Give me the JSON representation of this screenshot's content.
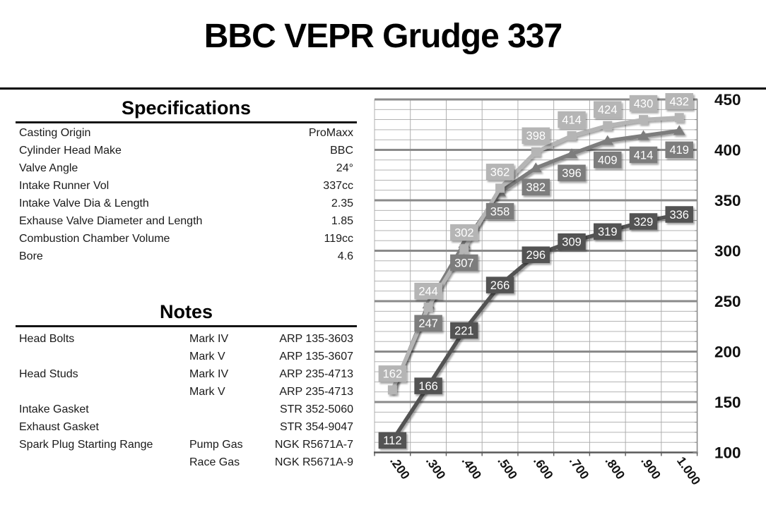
{
  "page": {
    "title": "BBC VEPR Grudge 337"
  },
  "specs": {
    "header": "Specifications",
    "rows": [
      {
        "label": "Casting Origin",
        "value": "ProMaxx"
      },
      {
        "label": "Cylinder Head Make",
        "value": "BBC"
      },
      {
        "label": "Valve Angle",
        "value": "24°"
      },
      {
        "label": "Intake Runner Vol",
        "value": "337cc"
      },
      {
        "label": "Intake Valve Dia & Length",
        "value": "2.35"
      },
      {
        "label": "Exhause Valve Diameter and Length",
        "value": "1.85"
      },
      {
        "label": "Combustion Chamber Volume",
        "value": "119cc"
      },
      {
        "label": "Bore",
        "value": "4.6"
      }
    ]
  },
  "notes": {
    "header": "Notes",
    "rows": [
      {
        "item": "Head Bolts",
        "variant": "Mark IV",
        "part": "ARP 135-3603"
      },
      {
        "item": "",
        "variant": "Mark V",
        "part": "ARP 135-3607"
      },
      {
        "item": "Head Studs",
        "variant": "Mark IV",
        "part": "ARP 235-4713"
      },
      {
        "item": "",
        "variant": "Mark V",
        "part": "ARP 235-4713"
      },
      {
        "item": "Intake Gasket",
        "variant": "",
        "part": "STR 352-5060"
      },
      {
        "item": "Exhaust Gasket",
        "variant": "",
        "part": "STR 354-9047"
      },
      {
        "item": "Spark Plug Starting Range",
        "variant": "Pump Gas",
        "part": "NGK R5671A-7"
      },
      {
        "item": "",
        "variant": "Race Gas",
        "part": "NGK R5671A-9"
      }
    ]
  },
  "chart_data": {
    "type": "line",
    "title": "BBC VEPR Grudge 337",
    "xlabel": "",
    "ylabel": "",
    "categories": [
      ".200",
      ".300",
      ".400",
      ".500",
      ".600",
      ".700",
      ".800",
      ".900",
      "1.000"
    ],
    "y_axis": {
      "min": 100,
      "max": 450,
      "major_step": 50,
      "minor_step": 10,
      "side": "right",
      "ticks": [
        "450",
        "400",
        "350",
        "300",
        "250",
        "200",
        "150",
        "100"
      ]
    },
    "grid": {
      "major": true,
      "minor": true,
      "vertical": true
    },
    "legend": "none",
    "series": [
      {
        "name": "flow-light-gray-squares",
        "marker": "square",
        "color": "#b5b5b5",
        "label_position": "above",
        "values": [
          162,
          244,
          302,
          362,
          398,
          414,
          424,
          430,
          432
        ],
        "labels": [
          "162",
          "244",
          "302",
          "362",
          "398",
          "414",
          "424",
          "430",
          "432"
        ]
      },
      {
        "name": "flow-medium-gray-triangles",
        "marker": "triangle",
        "color": "#7d7d7d",
        "label_position": "below",
        "values": [
          160,
          247,
          307,
          358,
          382,
          396,
          409,
          414,
          419
        ],
        "labels": [
          "",
          "247",
          "307",
          "358",
          "382",
          "396",
          "409",
          "414",
          "419"
        ]
      },
      {
        "name": "flow-dark-gray",
        "marker": "none",
        "color": "#525252",
        "label_position": "center",
        "values": [
          112,
          166,
          221,
          266,
          296,
          309,
          319,
          329,
          336
        ],
        "labels": [
          "112",
          "166",
          "221",
          "266",
          "296",
          "309",
          "319",
          "329",
          "336"
        ]
      }
    ]
  }
}
